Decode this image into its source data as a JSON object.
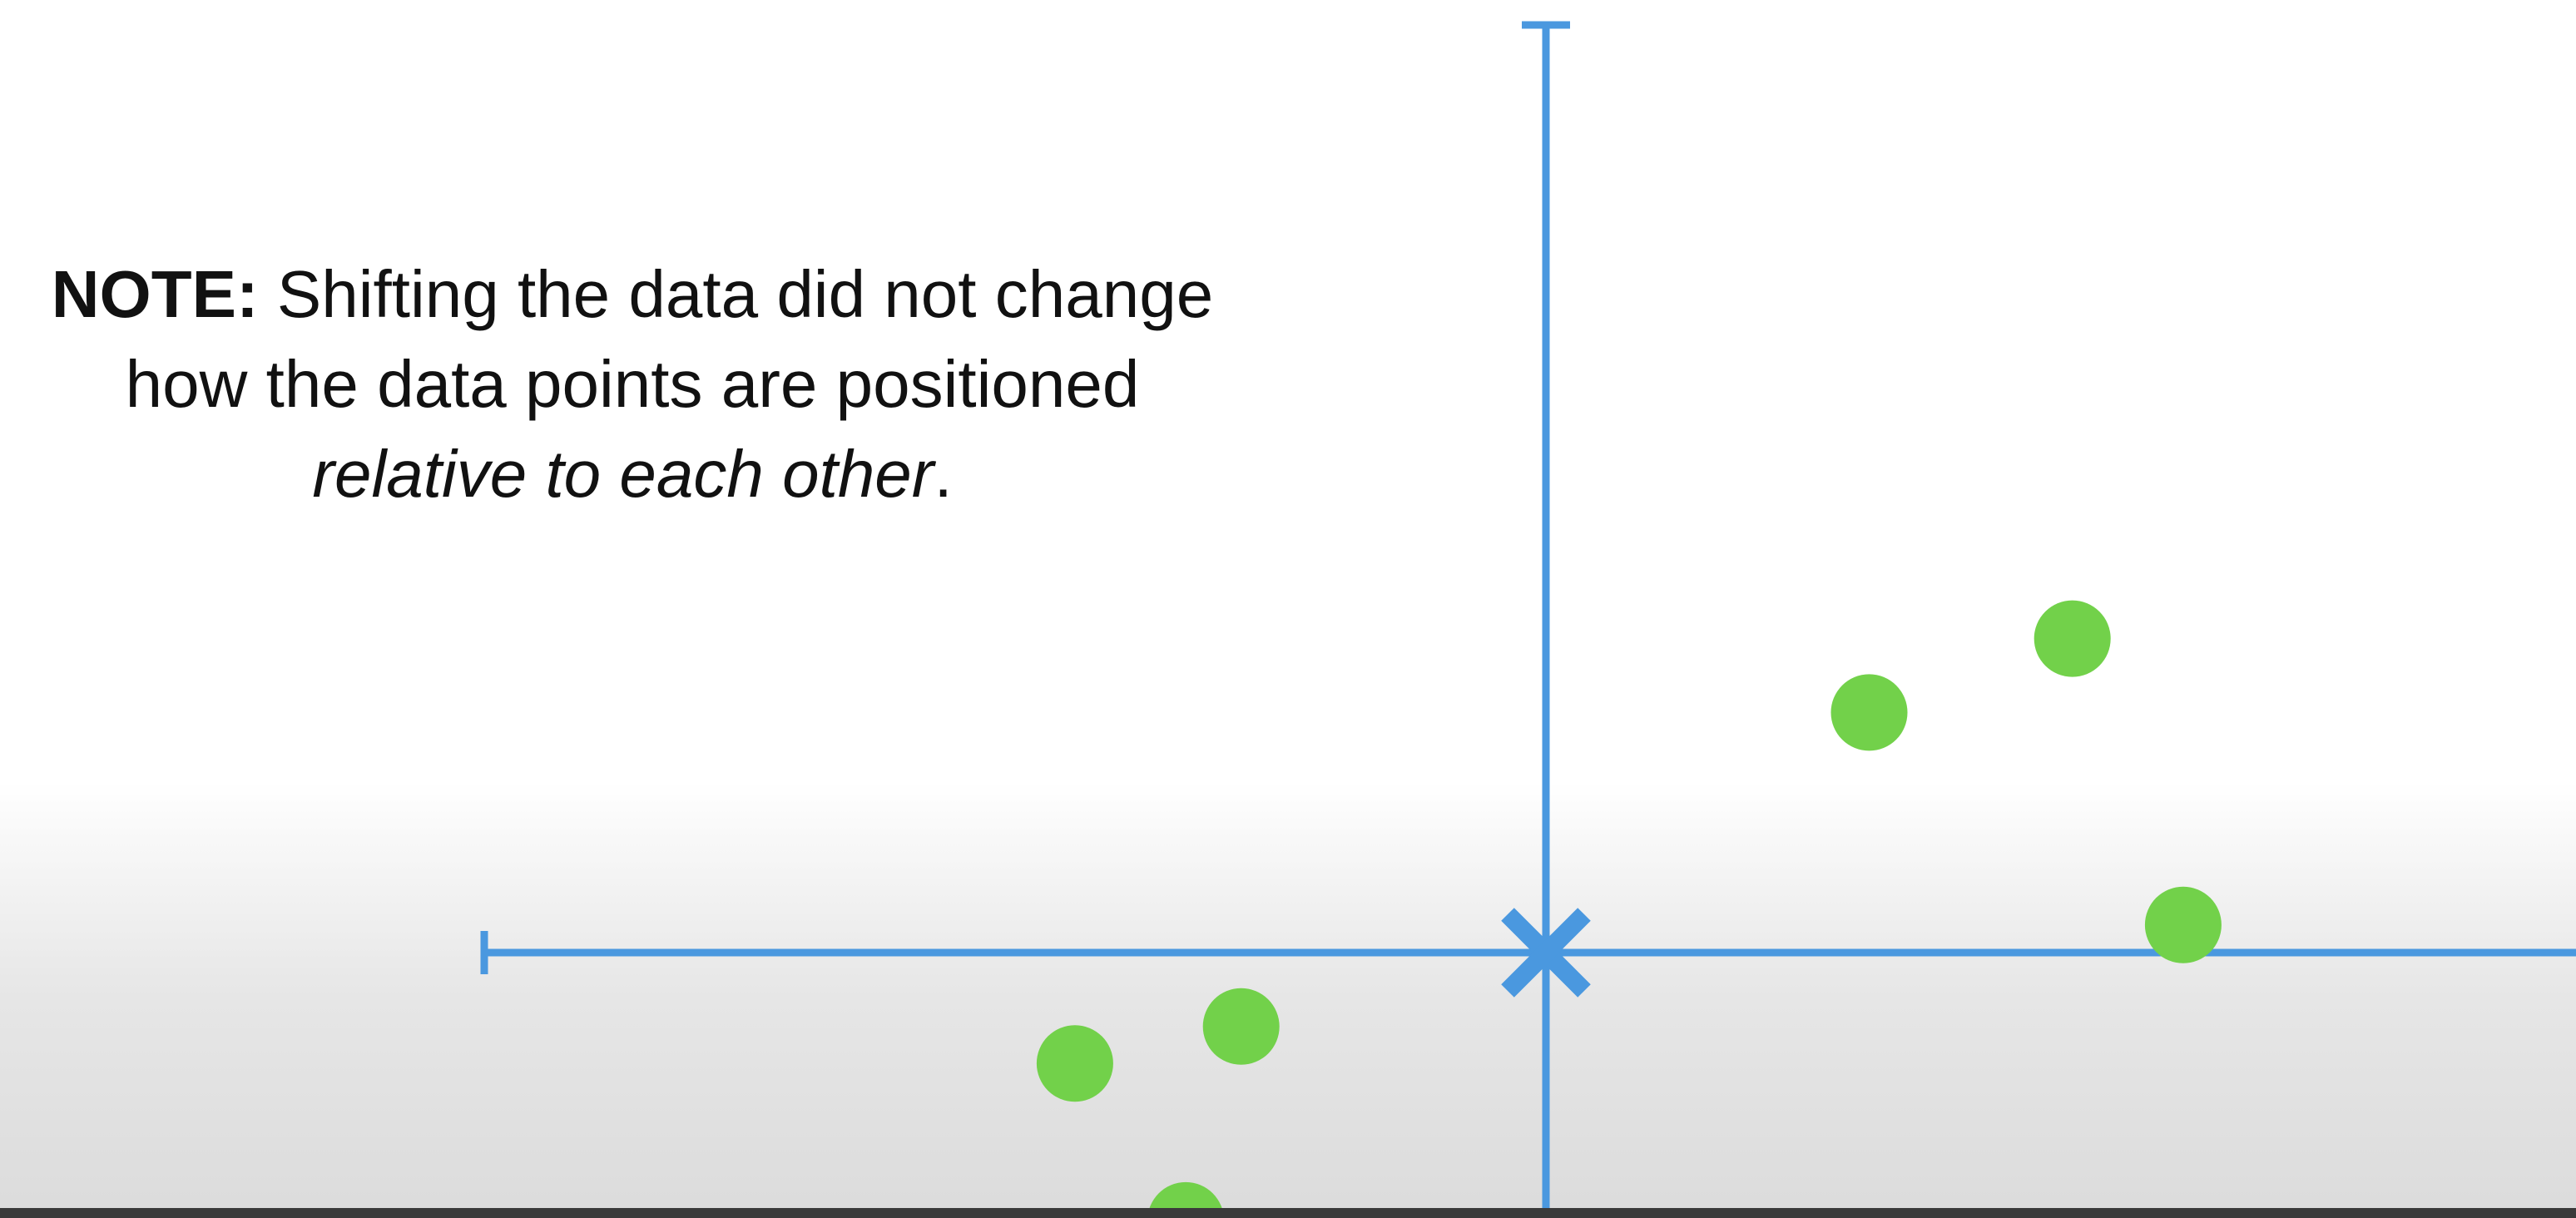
{
  "note": {
    "label": "NOTE:",
    "text_before": " Shifting the data did not change how the data points are positioned ",
    "emphasis": "relative to each other",
    "text_after": "."
  },
  "colors": {
    "axis": "#4a98df",
    "point": "#72d14a",
    "text": "#111111"
  },
  "icons": {
    "center_marker": "x-marker-icon"
  },
  "chart_data": {
    "type": "scatter",
    "title": "",
    "xlabel": "",
    "ylabel": "",
    "xlim": [
      -6.5,
      6.5
    ],
    "ylim": [
      -2.8,
      11.2
    ],
    "grid": false,
    "center_marker": {
      "x": 0,
      "y": 0
    },
    "series": [
      {
        "points": [
          {
            "x": 3.5,
            "y": 2.6
          },
          {
            "x": 5.7,
            "y": 3.4
          },
          {
            "x": 6.9,
            "y": 0.3
          },
          {
            "x": -5.1,
            "y": -1.2
          },
          {
            "x": -3.3,
            "y": -0.8
          },
          {
            "x": -3.9,
            "y": -2.9
          }
        ]
      }
    ]
  }
}
